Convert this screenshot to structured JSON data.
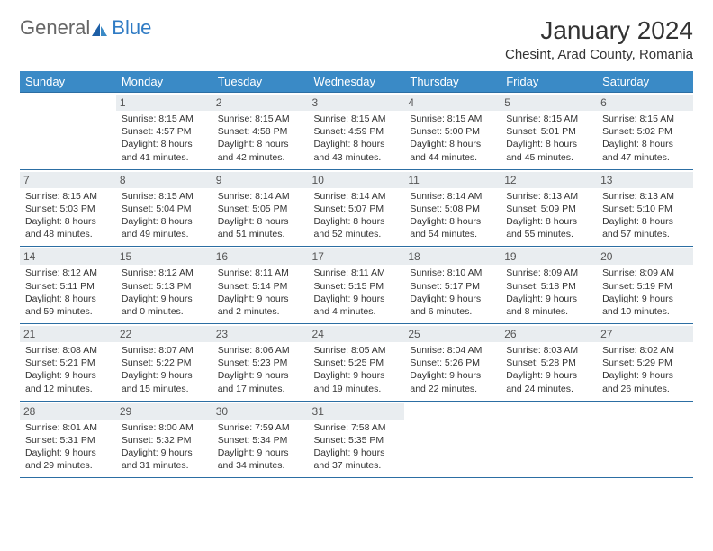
{
  "logo": {
    "text1": "General",
    "text2": "Blue"
  },
  "title": "January 2024",
  "location": "Chesint, Arad County, Romania",
  "colors": {
    "header_bg": "#3a8ac6",
    "border": "#2c6ea3",
    "daynum_bg": "#e9edf0",
    "logo_blue": "#2f7bc4"
  },
  "day_names": [
    "Sunday",
    "Monday",
    "Tuesday",
    "Wednesday",
    "Thursday",
    "Friday",
    "Saturday"
  ],
  "weeks": [
    [
      null,
      {
        "n": "1",
        "sr": "Sunrise: 8:15 AM",
        "ss": "Sunset: 4:57 PM",
        "d1": "Daylight: 8 hours",
        "d2": "and 41 minutes."
      },
      {
        "n": "2",
        "sr": "Sunrise: 8:15 AM",
        "ss": "Sunset: 4:58 PM",
        "d1": "Daylight: 8 hours",
        "d2": "and 42 minutes."
      },
      {
        "n": "3",
        "sr": "Sunrise: 8:15 AM",
        "ss": "Sunset: 4:59 PM",
        "d1": "Daylight: 8 hours",
        "d2": "and 43 minutes."
      },
      {
        "n": "4",
        "sr": "Sunrise: 8:15 AM",
        "ss": "Sunset: 5:00 PM",
        "d1": "Daylight: 8 hours",
        "d2": "and 44 minutes."
      },
      {
        "n": "5",
        "sr": "Sunrise: 8:15 AM",
        "ss": "Sunset: 5:01 PM",
        "d1": "Daylight: 8 hours",
        "d2": "and 45 minutes."
      },
      {
        "n": "6",
        "sr": "Sunrise: 8:15 AM",
        "ss": "Sunset: 5:02 PM",
        "d1": "Daylight: 8 hours",
        "d2": "and 47 minutes."
      }
    ],
    [
      {
        "n": "7",
        "sr": "Sunrise: 8:15 AM",
        "ss": "Sunset: 5:03 PM",
        "d1": "Daylight: 8 hours",
        "d2": "and 48 minutes."
      },
      {
        "n": "8",
        "sr": "Sunrise: 8:15 AM",
        "ss": "Sunset: 5:04 PM",
        "d1": "Daylight: 8 hours",
        "d2": "and 49 minutes."
      },
      {
        "n": "9",
        "sr": "Sunrise: 8:14 AM",
        "ss": "Sunset: 5:05 PM",
        "d1": "Daylight: 8 hours",
        "d2": "and 51 minutes."
      },
      {
        "n": "10",
        "sr": "Sunrise: 8:14 AM",
        "ss": "Sunset: 5:07 PM",
        "d1": "Daylight: 8 hours",
        "d2": "and 52 minutes."
      },
      {
        "n": "11",
        "sr": "Sunrise: 8:14 AM",
        "ss": "Sunset: 5:08 PM",
        "d1": "Daylight: 8 hours",
        "d2": "and 54 minutes."
      },
      {
        "n": "12",
        "sr": "Sunrise: 8:13 AM",
        "ss": "Sunset: 5:09 PM",
        "d1": "Daylight: 8 hours",
        "d2": "and 55 minutes."
      },
      {
        "n": "13",
        "sr": "Sunrise: 8:13 AM",
        "ss": "Sunset: 5:10 PM",
        "d1": "Daylight: 8 hours",
        "d2": "and 57 minutes."
      }
    ],
    [
      {
        "n": "14",
        "sr": "Sunrise: 8:12 AM",
        "ss": "Sunset: 5:11 PM",
        "d1": "Daylight: 8 hours",
        "d2": "and 59 minutes."
      },
      {
        "n": "15",
        "sr": "Sunrise: 8:12 AM",
        "ss": "Sunset: 5:13 PM",
        "d1": "Daylight: 9 hours",
        "d2": "and 0 minutes."
      },
      {
        "n": "16",
        "sr": "Sunrise: 8:11 AM",
        "ss": "Sunset: 5:14 PM",
        "d1": "Daylight: 9 hours",
        "d2": "and 2 minutes."
      },
      {
        "n": "17",
        "sr": "Sunrise: 8:11 AM",
        "ss": "Sunset: 5:15 PM",
        "d1": "Daylight: 9 hours",
        "d2": "and 4 minutes."
      },
      {
        "n": "18",
        "sr": "Sunrise: 8:10 AM",
        "ss": "Sunset: 5:17 PM",
        "d1": "Daylight: 9 hours",
        "d2": "and 6 minutes."
      },
      {
        "n": "19",
        "sr": "Sunrise: 8:09 AM",
        "ss": "Sunset: 5:18 PM",
        "d1": "Daylight: 9 hours",
        "d2": "and 8 minutes."
      },
      {
        "n": "20",
        "sr": "Sunrise: 8:09 AM",
        "ss": "Sunset: 5:19 PM",
        "d1": "Daylight: 9 hours",
        "d2": "and 10 minutes."
      }
    ],
    [
      {
        "n": "21",
        "sr": "Sunrise: 8:08 AM",
        "ss": "Sunset: 5:21 PM",
        "d1": "Daylight: 9 hours",
        "d2": "and 12 minutes."
      },
      {
        "n": "22",
        "sr": "Sunrise: 8:07 AM",
        "ss": "Sunset: 5:22 PM",
        "d1": "Daylight: 9 hours",
        "d2": "and 15 minutes."
      },
      {
        "n": "23",
        "sr": "Sunrise: 8:06 AM",
        "ss": "Sunset: 5:23 PM",
        "d1": "Daylight: 9 hours",
        "d2": "and 17 minutes."
      },
      {
        "n": "24",
        "sr": "Sunrise: 8:05 AM",
        "ss": "Sunset: 5:25 PM",
        "d1": "Daylight: 9 hours",
        "d2": "and 19 minutes."
      },
      {
        "n": "25",
        "sr": "Sunrise: 8:04 AM",
        "ss": "Sunset: 5:26 PM",
        "d1": "Daylight: 9 hours",
        "d2": "and 22 minutes."
      },
      {
        "n": "26",
        "sr": "Sunrise: 8:03 AM",
        "ss": "Sunset: 5:28 PM",
        "d1": "Daylight: 9 hours",
        "d2": "and 24 minutes."
      },
      {
        "n": "27",
        "sr": "Sunrise: 8:02 AM",
        "ss": "Sunset: 5:29 PM",
        "d1": "Daylight: 9 hours",
        "d2": "and 26 minutes."
      }
    ],
    [
      {
        "n": "28",
        "sr": "Sunrise: 8:01 AM",
        "ss": "Sunset: 5:31 PM",
        "d1": "Daylight: 9 hours",
        "d2": "and 29 minutes."
      },
      {
        "n": "29",
        "sr": "Sunrise: 8:00 AM",
        "ss": "Sunset: 5:32 PM",
        "d1": "Daylight: 9 hours",
        "d2": "and 31 minutes."
      },
      {
        "n": "30",
        "sr": "Sunrise: 7:59 AM",
        "ss": "Sunset: 5:34 PM",
        "d1": "Daylight: 9 hours",
        "d2": "and 34 minutes."
      },
      {
        "n": "31",
        "sr": "Sunrise: 7:58 AM",
        "ss": "Sunset: 5:35 PM",
        "d1": "Daylight: 9 hours",
        "d2": "and 37 minutes."
      },
      null,
      null,
      null
    ]
  ]
}
